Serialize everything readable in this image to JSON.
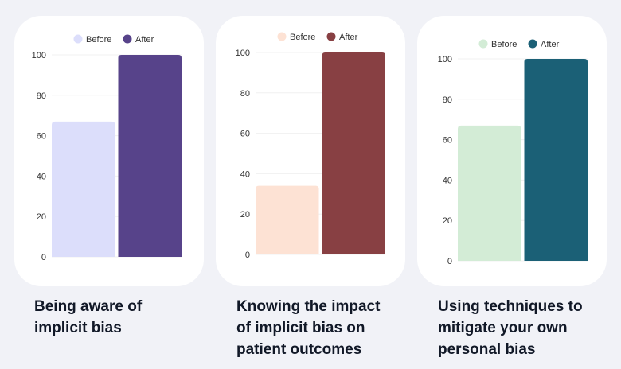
{
  "chart_data": [
    {
      "type": "bar",
      "title": "Being aware of implicit bias",
      "categories": [
        "Before",
        "After"
      ],
      "series": [
        {
          "name": "Before",
          "values": [
            67
          ],
          "color": "#dcdefb"
        },
        {
          "name": "After",
          "values": [
            100
          ],
          "color": "#57438a"
        }
      ],
      "legend": [
        "Before",
        "After"
      ],
      "legend_position": "top",
      "yticks": [
        0,
        20,
        40,
        60,
        80,
        100
      ],
      "ylim": [
        0,
        100
      ],
      "grid": true,
      "xlabel": "",
      "ylabel": ""
    },
    {
      "type": "bar",
      "title": "Knowing the impact of implicit bias on patient outcomes",
      "categories": [
        "Before",
        "After"
      ],
      "series": [
        {
          "name": "Before",
          "values": [
            34
          ],
          "color": "#fde2d4"
        },
        {
          "name": "After",
          "values": [
            100
          ],
          "color": "#884043"
        }
      ],
      "legend": [
        "Before",
        "After"
      ],
      "legend_position": "top",
      "yticks": [
        0,
        20,
        40,
        60,
        80,
        100
      ],
      "ylim": [
        0,
        100
      ],
      "grid": true,
      "xlabel": "",
      "ylabel": ""
    },
    {
      "type": "bar",
      "title": "Using techniques to mitigate your own personal bias",
      "categories": [
        "Before",
        "After"
      ],
      "series": [
        {
          "name": "Before",
          "values": [
            67
          ],
          "color": "#d3ecd6"
        },
        {
          "name": "After",
          "values": [
            100
          ],
          "color": "#1b6076"
        }
      ],
      "legend": [
        "Before",
        "After"
      ],
      "legend_position": "top",
      "yticks": [
        0,
        20,
        40,
        60,
        80,
        100
      ],
      "ylim": [
        0,
        100
      ],
      "grid": true,
      "xlabel": "",
      "ylabel": ""
    }
  ],
  "captions": [
    "Being aware of\nimplicit bias",
    "Knowing the impact\nof implicit bias on\npatient outcomes",
    "Using techniques to\nmitigate your own\npersonal bias"
  ]
}
